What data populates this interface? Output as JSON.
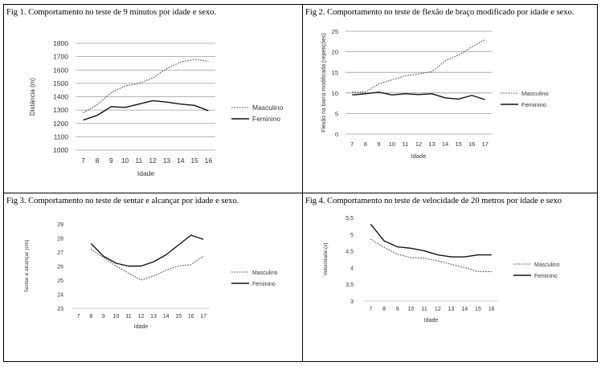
{
  "colors": {
    "axis": "#999999",
    "grid": "#9a9a9a",
    "male": "#444444",
    "female": "#111111"
  },
  "chart_data": [
    {
      "id": "fig1",
      "type": "line",
      "title": "Fig 1. Comportamento no teste de 9 minutos por idade e sexo.",
      "xlabel": "Idade",
      "ylabel": "Distância (m)",
      "x": [
        7,
        8,
        9,
        10,
        11,
        12,
        13,
        14,
        15,
        16
      ],
      "xlim": [
        6.5,
        16.5
      ],
      "ylim": [
        1000,
        1800
      ],
      "yticks": [
        1000,
        1100,
        1200,
        1300,
        1400,
        1500,
        1600,
        1700,
        1800
      ],
      "grid": true,
      "legend_position": "right",
      "series": [
        {
          "name": "Masculino",
          "style": "dotted",
          "values": [
            1280,
            1340,
            1430,
            1480,
            1500,
            1540,
            1610,
            1660,
            1680,
            1665
          ]
        },
        {
          "name": "Feminino",
          "style": "solid",
          "values": [
            1225,
            1260,
            1325,
            1320,
            1345,
            1370,
            1360,
            1345,
            1335,
            1295
          ]
        }
      ]
    },
    {
      "id": "fig2",
      "type": "line",
      "title": "Fig 2. Comportamento no teste de flexão de braço modificado por idade e sexo.",
      "xlabel": "Idade",
      "ylabel": "Flexão na barra modificada (repetições)",
      "x": [
        7,
        8,
        9,
        10,
        11,
        12,
        13,
        14,
        15,
        16,
        17
      ],
      "xlim": [
        6.5,
        17.5
      ],
      "ylim": [
        0,
        25
      ],
      "yticks": [
        0,
        5,
        10,
        15,
        20,
        25
      ],
      "grid": true,
      "legend_position": "right",
      "series": [
        {
          "name": "Masculino",
          "style": "dotted",
          "values": [
            10.2,
            10.2,
            12.2,
            13.2,
            14.2,
            14.6,
            15.2,
            17.8,
            19.2,
            21.2,
            23
          ]
        },
        {
          "name": "Feminino",
          "style": "solid",
          "values": [
            9.5,
            9.8,
            10.2,
            9.5,
            9.8,
            9.6,
            9.8,
            8.8,
            8.5,
            9.4,
            8.4
          ]
        }
      ]
    },
    {
      "id": "fig3",
      "type": "line",
      "title": "Fig 3. Comportamento no teste de sentar e alcançar por idade e sexo.",
      "xlabel": "Idade",
      "ylabel": "Sentar e alcançar (cm)",
      "x": [
        7,
        8,
        9,
        10,
        11,
        12,
        13,
        14,
        15,
        16,
        17
      ],
      "xlim": [
        6.5,
        17.5
      ],
      "ylim": [
        23,
        29
      ],
      "yticks": [
        23,
        24,
        25,
        26,
        27,
        28,
        29
      ],
      "grid": false,
      "legend_position": "right",
      "series": [
        {
          "name": "Masculino",
          "style": "dotted",
          "values": [
            null,
            27.2,
            26.6,
            26.0,
            25.5,
            25.0,
            25.3,
            25.7,
            26.0,
            26.1,
            26.7
          ]
        },
        {
          "name": "Feminino",
          "style": "solid",
          "values": [
            null,
            27.6,
            26.7,
            26.2,
            26.0,
            26.0,
            26.3,
            26.8,
            27.5,
            28.2,
            27.9
          ]
        }
      ]
    },
    {
      "id": "fig4",
      "type": "line",
      "title": "Fig 4. Comportamento no teste de velocidade de 20 metros por idade e sexo",
      "xlabel": "Idade",
      "ylabel": "Velocidade (s)",
      "x": [
        7,
        8,
        9,
        10,
        11,
        12,
        13,
        14,
        15,
        16
      ],
      "xlim": [
        6.5,
        16.5
      ],
      "ylim": [
        3,
        5.5
      ],
      "yticks": [
        3,
        3.5,
        4,
        4.5,
        5,
        5.5
      ],
      "grid": false,
      "legend_position": "right",
      "series": [
        {
          "name": "Masculino",
          "style": "dotted",
          "values": [
            4.85,
            4.6,
            4.4,
            4.3,
            4.28,
            4.2,
            4.1,
            4.0,
            3.88,
            3.88
          ]
        },
        {
          "name": "Feminino",
          "style": "solid",
          "values": [
            5.3,
            4.8,
            4.62,
            4.58,
            4.5,
            4.38,
            4.32,
            4.32,
            4.38,
            4.38
          ]
        }
      ]
    }
  ]
}
